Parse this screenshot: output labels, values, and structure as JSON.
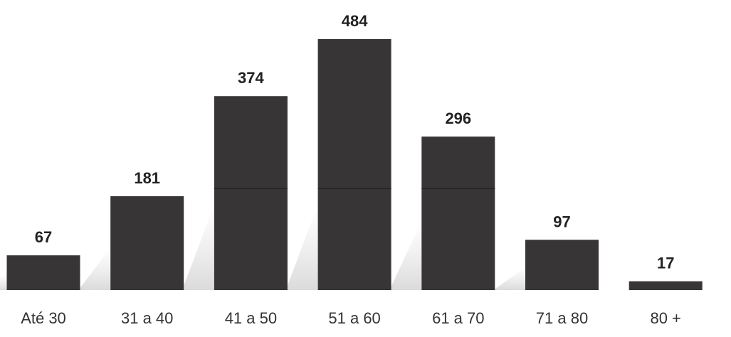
{
  "colors": {
    "bar": "#383537",
    "bar_line": "#2a2729",
    "value_text": "#222222",
    "category_text": "#333333",
    "background": "#ffffff"
  },
  "chart_data": {
    "type": "bar",
    "categories": [
      "Até 30",
      "31 a 40",
      "41 a 50",
      "51 a 60",
      "61 a 70",
      "71 a 80",
      "80 +"
    ],
    "values": [
      67,
      181,
      374,
      484,
      296,
      97,
      17
    ],
    "data_labels": [
      "67",
      "181",
      "374",
      "484",
      "296",
      "97",
      "17"
    ],
    "title": "",
    "xlabel": "",
    "ylabel": "",
    "ylim": [
      0,
      484
    ],
    "grid": false,
    "legend": "none"
  }
}
